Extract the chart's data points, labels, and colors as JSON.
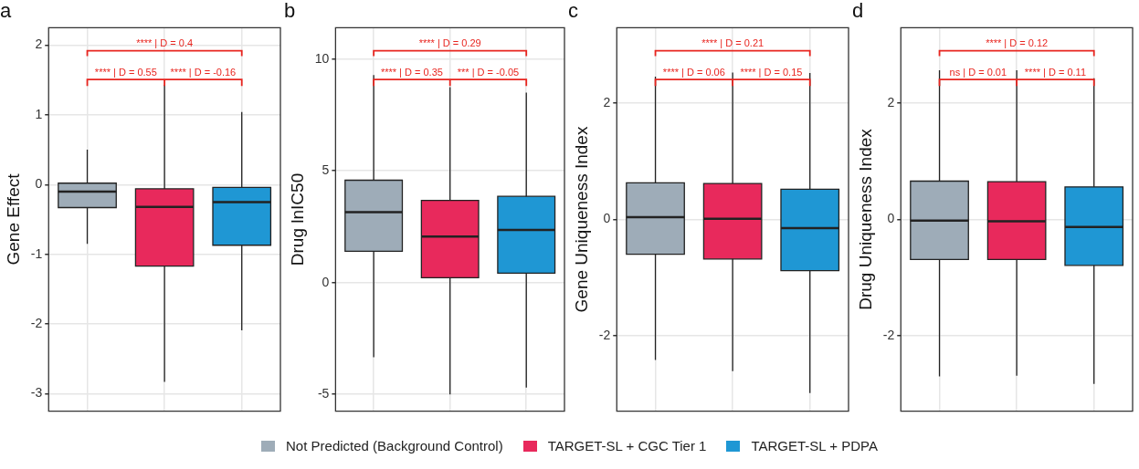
{
  "chart_data": [
    {
      "type": "box",
      "title": "a",
      "ylabel": "Gene Effect",
      "categories": [
        null,
        null,
        null
      ],
      "ylim": [
        -3.25,
        2.25
      ],
      "yticks": [
        -3,
        -2,
        -1,
        0,
        1,
        2
      ],
      "grid": true,
      "tick_labels": "y",
      "legend": "bottom",
      "annotations": [
        "**** | D = 0.4",
        "**** | D = 0.55",
        "**** | D = -0.16"
      ],
      "series": [
        {
          "name": "Not Predicted (Background Control)",
          "color": "#9eacb8",
          "boxes": [
            {
              "low": -0.85,
              "q1": -0.33,
              "median": -0.1,
              "q3": 0.02,
              "high": 0.5
            },
            null,
            null
          ]
        },
        {
          "name": "TARGET-SL + CGC Tier 1",
          "color": "#e8295c",
          "boxes": [
            null,
            {
              "low": -2.83,
              "q1": -1.17,
              "median": -0.32,
              "q3": -0.06,
              "high": 1.43
            },
            null
          ]
        },
        {
          "name": "TARGET-SL + PDPA",
          "color": "#1f97d4",
          "boxes": [
            null,
            null,
            {
              "low": -2.09,
              "q1": -0.87,
              "median": -0.25,
              "q3": -0.04,
              "high": 1.04
            }
          ]
        }
      ]
    },
    {
      "type": "box",
      "title": "b",
      "ylabel": "Drug lnIC50",
      "categories": [
        null,
        null,
        null
      ],
      "ylim": [
        -5.75,
        11.4
      ],
      "yticks": [
        -5,
        0,
        5,
        10
      ],
      "grid": true,
      "tick_labels": "y",
      "annotations": [
        "**** | D = 0.29",
        "**** | D = 0.35",
        "*** | D = -0.05"
      ],
      "series": [
        {
          "color": "#9eacb8",
          "boxes": [
            {
              "low": -3.34,
              "q1": 1.4,
              "median": 3.15,
              "q3": 4.58,
              "high": 9.28
            },
            null,
            null
          ]
        },
        {
          "color": "#e8295c",
          "boxes": [
            null,
            {
              "low": -5.0,
              "q1": 0.22,
              "median": 2.06,
              "q3": 3.68,
              "high": 8.74
            },
            null
          ]
        },
        {
          "color": "#1f97d4",
          "boxes": [
            null,
            null,
            {
              "low": -4.7,
              "q1": 0.42,
              "median": 2.36,
              "q3": 3.86,
              "high": 8.5
            }
          ]
        }
      ]
    },
    {
      "type": "box",
      "title": "c",
      "ylabel": "Gene Uniqueness Index",
      "categories": [
        null,
        null,
        null
      ],
      "ylim": [
        -3.3,
        3.3
      ],
      "yticks": [
        -2,
        0,
        2
      ],
      "grid": true,
      "tick_labels": "y",
      "annotations": [
        "**** | D = 0.21",
        "**** | D = 0.06",
        "**** | D = 0.15"
      ],
      "series": [
        {
          "color": "#9eacb8",
          "boxes": [
            {
              "low": -2.42,
              "q1": -0.6,
              "median": 0.04,
              "q3": 0.63,
              "high": 2.46
            },
            null,
            null
          ]
        },
        {
          "color": "#e8295c",
          "boxes": [
            null,
            {
              "low": -2.61,
              "q1": -0.68,
              "median": 0.01,
              "q3": 0.62,
              "high": 2.53
            },
            null
          ]
        },
        {
          "color": "#1f97d4",
          "boxes": [
            null,
            null,
            {
              "low": -2.99,
              "q1": -0.88,
              "median": -0.15,
              "q3": 0.52,
              "high": 2.52
            }
          ]
        }
      ]
    },
    {
      "type": "box",
      "title": "d",
      "ylabel": "Drug Uniqueness Index",
      "categories": [
        null,
        null,
        null
      ],
      "ylim": [
        -3.3,
        3.3
      ],
      "yticks": [
        -2,
        0,
        2
      ],
      "grid": true,
      "tick_labels": "y",
      "annotations": [
        "**** | D = 0.12",
        "ns | D = 0.01",
        "**** | D = 0.11"
      ],
      "series": [
        {
          "color": "#9eacb8",
          "boxes": [
            {
              "low": -2.7,
              "q1": -0.69,
              "median": -0.02,
              "q3": 0.66,
              "high": 2.57
            },
            null,
            null
          ]
        },
        {
          "color": "#e8295c",
          "boxes": [
            null,
            {
              "low": -2.69,
              "q1": -0.69,
              "median": -0.03,
              "q3": 0.65,
              "high": 2.57
            },
            null
          ]
        },
        {
          "color": "#1f97d4",
          "boxes": [
            null,
            null,
            {
              "low": -2.83,
              "q1": -0.79,
              "median": -0.13,
              "q3": 0.56,
              "high": 2.43
            }
          ]
        }
      ]
    }
  ]
}
